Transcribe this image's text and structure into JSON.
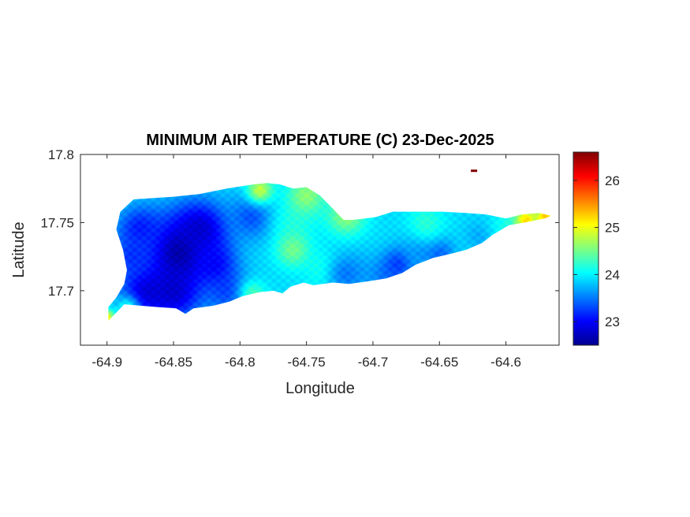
{
  "chart_data": {
    "type": "heatmap",
    "title": "MINIMUM AIR TEMPERATURE (C) 23-Dec-2025",
    "xlabel": "Longitude",
    "ylabel": "Latitude",
    "xlim": [
      -64.92,
      -64.56
    ],
    "ylim": [
      17.66,
      17.8
    ],
    "x_ticks": [
      -64.9,
      -64.85,
      -64.8,
      -64.75,
      -64.7,
      -64.65,
      -64.6
    ],
    "x_tick_labels": [
      "-64.9",
      "-64.85",
      "-64.8",
      "-64.75",
      "-64.7",
      "-64.65",
      "-64.6"
    ],
    "y_ticks": [
      17.7,
      17.75,
      17.8
    ],
    "y_tick_labels": [
      "17.7",
      "17.75",
      "17.8"
    ],
    "colorbar": {
      "colormap": "jet",
      "clim": [
        22.5,
        26.6
      ],
      "ticks": [
        23,
        24,
        25,
        26
      ],
      "tick_labels": [
        "23",
        "24",
        "25",
        "26"
      ]
    },
    "field": {
      "background": 23.9,
      "features": [
        {
          "lon": -64.845,
          "lat": 17.727,
          "value": 22.55,
          "radius": 0.02
        },
        {
          "lon": -64.83,
          "lat": 17.745,
          "value": 22.8,
          "radius": 0.014
        },
        {
          "lon": -64.87,
          "lat": 17.7,
          "value": 22.85,
          "radius": 0.014
        },
        {
          "lon": -64.85,
          "lat": 17.7,
          "value": 22.8,
          "radius": 0.014
        },
        {
          "lon": -64.81,
          "lat": 17.7,
          "value": 23.3,
          "radius": 0.012
        },
        {
          "lon": -64.875,
          "lat": 17.745,
          "value": 23.1,
          "radius": 0.012
        },
        {
          "lon": -64.88,
          "lat": 17.725,
          "value": 23.2,
          "radius": 0.011
        },
        {
          "lon": -64.79,
          "lat": 17.755,
          "value": 23.3,
          "radius": 0.012
        },
        {
          "lon": -64.82,
          "lat": 17.72,
          "value": 23.0,
          "radius": 0.011
        },
        {
          "lon": -64.76,
          "lat": 17.75,
          "value": 24.1,
          "radius": 0.012
        },
        {
          "lon": -64.76,
          "lat": 17.73,
          "value": 24.5,
          "radius": 0.009
        },
        {
          "lon": -64.735,
          "lat": 17.715,
          "value": 24.3,
          "radius": 0.01
        },
        {
          "lon": -64.72,
          "lat": 17.712,
          "value": 23.5,
          "radius": 0.012
        },
        {
          "lon": -64.69,
          "lat": 17.71,
          "value": 23.5,
          "radius": 0.011
        },
        {
          "lon": -64.68,
          "lat": 17.72,
          "value": 23.2,
          "radius": 0.008
        },
        {
          "lon": -64.665,
          "lat": 17.73,
          "value": 23.6,
          "radius": 0.01
        },
        {
          "lon": -64.65,
          "lat": 17.728,
          "value": 23.4,
          "radius": 0.008
        },
        {
          "lon": -64.66,
          "lat": 17.75,
          "value": 24.2,
          "radius": 0.01
        },
        {
          "lon": -64.62,
          "lat": 17.74,
          "value": 23.7,
          "radius": 0.008
        },
        {
          "lon": -64.6,
          "lat": 17.748,
          "value": 24.1,
          "radius": 0.008
        },
        {
          "lon": -64.785,
          "lat": 17.774,
          "value": 24.8,
          "radius": 0.007
        },
        {
          "lon": -64.75,
          "lat": 17.77,
          "value": 24.6,
          "radius": 0.01
        },
        {
          "lon": -64.72,
          "lat": 17.755,
          "value": 24.6,
          "radius": 0.01
        },
        {
          "lon": -64.585,
          "lat": 17.752,
          "value": 25.2,
          "radius": 0.006
        },
        {
          "lon": -64.57,
          "lat": 17.754,
          "value": 25.3,
          "radius": 0.006
        },
        {
          "lon": -64.885,
          "lat": 17.687,
          "value": 24.1,
          "radius": 0.006
        },
        {
          "lon": -64.9,
          "lat": 17.68,
          "value": 25.1,
          "radius": 0.004
        },
        {
          "lon": -64.79,
          "lat": 17.698,
          "value": 24.3,
          "radius": 0.007
        }
      ],
      "outliers": [
        {
          "lon": -64.624,
          "lat": 17.788,
          "value": 26.6
        }
      ]
    },
    "land_outline": [
      [
        -64.899,
        17.678
      ],
      [
        -64.893,
        17.684
      ],
      [
        -64.887,
        17.69
      ],
      [
        -64.875,
        17.689
      ],
      [
        -64.862,
        17.688
      ],
      [
        -64.848,
        17.687
      ],
      [
        -64.841,
        17.683
      ],
      [
        -64.835,
        17.687
      ],
      [
        -64.82,
        17.689
      ],
      [
        -64.808,
        17.692
      ],
      [
        -64.798,
        17.696
      ],
      [
        -64.785,
        17.699
      ],
      [
        -64.775,
        17.7
      ],
      [
        -64.768,
        17.698
      ],
      [
        -64.762,
        17.703
      ],
      [
        -64.752,
        17.706
      ],
      [
        -64.745,
        17.704
      ],
      [
        -64.73,
        17.706
      ],
      [
        -64.718,
        17.705
      ],
      [
        -64.703,
        17.707
      ],
      [
        -64.69,
        17.709
      ],
      [
        -64.678,
        17.713
      ],
      [
        -64.668,
        17.719
      ],
      [
        -64.655,
        17.724
      ],
      [
        -64.642,
        17.727
      ],
      [
        -64.63,
        17.73
      ],
      [
        -64.618,
        17.735
      ],
      [
        -64.61,
        17.741
      ],
      [
        -64.598,
        17.748
      ],
      [
        -64.586,
        17.75
      ],
      [
        -64.571,
        17.753
      ],
      [
        -64.566,
        17.755
      ],
      [
        -64.575,
        17.757
      ],
      [
        -64.588,
        17.756
      ],
      [
        -64.6,
        17.753
      ],
      [
        -64.615,
        17.756
      ],
      [
        -64.63,
        17.757
      ],
      [
        -64.648,
        17.758
      ],
      [
        -64.665,
        17.758
      ],
      [
        -64.685,
        17.758
      ],
      [
        -64.698,
        17.754
      ],
      [
        -64.715,
        17.752
      ],
      [
        -64.722,
        17.752
      ],
      [
        -64.73,
        17.76
      ],
      [
        -64.74,
        17.77
      ],
      [
        -64.75,
        17.776
      ],
      [
        -64.76,
        17.775
      ],
      [
        -64.77,
        17.778
      ],
      [
        -64.78,
        17.779
      ],
      [
        -64.79,
        17.778
      ],
      [
        -64.81,
        17.775
      ],
      [
        -64.83,
        17.771
      ],
      [
        -64.85,
        17.769
      ],
      [
        -64.865,
        17.768
      ],
      [
        -64.88,
        17.767
      ],
      [
        -64.89,
        17.758
      ],
      [
        -64.893,
        17.745
      ],
      [
        -64.888,
        17.73
      ],
      [
        -64.885,
        17.715
      ],
      [
        -64.887,
        17.705
      ],
      [
        -64.893,
        17.695
      ],
      [
        -64.899,
        17.688
      ]
    ]
  }
}
